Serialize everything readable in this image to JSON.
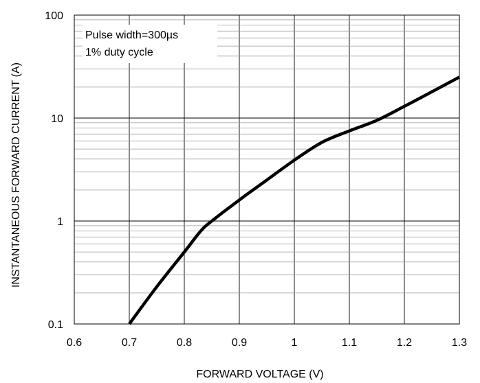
{
  "chart_data": {
    "type": "line",
    "title": "",
    "xlabel": "FORWARD VOLTAGE (V)",
    "ylabel": "INSTANTANEOUS FORWARD CURRENT (A)",
    "xlim": [
      0.6,
      1.3
    ],
    "ylim": [
      0.1,
      100
    ],
    "yscale": "log",
    "grid": true,
    "x_ticks": [
      0.6,
      0.7,
      0.8,
      0.9,
      1.0,
      1.1,
      1.2,
      1.3
    ],
    "x_tick_labels": [
      "0.6",
      "0.7",
      "0.8",
      "0.9",
      "1",
      "1.1",
      "1.2",
      "1.3"
    ],
    "y_ticks": [
      0.1,
      1,
      10,
      100
    ],
    "y_tick_labels": [
      "0.1",
      "1",
      "10",
      "100"
    ],
    "annotations": [
      "Pulse width=300µs",
      "1% duty cycle"
    ],
    "series": [
      {
        "x": [
          0.7,
          0.75,
          0.8,
          0.83,
          0.85,
          0.9,
          0.95,
          1.0,
          1.05,
          1.1,
          1.15,
          1.2,
          1.25,
          1.3
        ],
        "y": [
          0.1,
          0.23,
          0.5,
          0.8,
          1.0,
          1.6,
          2.5,
          3.9,
          5.8,
          7.5,
          9.5,
          13.0,
          18.0,
          25.0
        ]
      }
    ]
  }
}
